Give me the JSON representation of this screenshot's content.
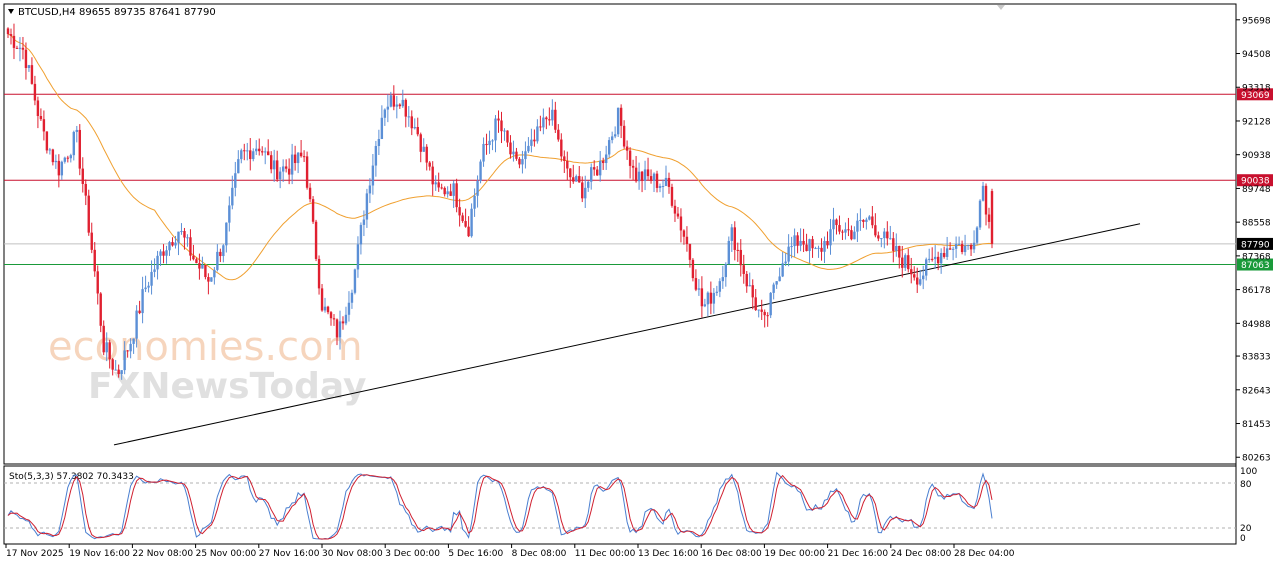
{
  "header": {
    "symbol_line": "BTCUSD,H4  89655 89735 87641 87790"
  },
  "indicator": {
    "label": "Sto(5,3,3) 57.3802 70.3433",
    "levels_text": [
      "100",
      "80",
      "20",
      "0"
    ]
  },
  "watermark": {
    "line1": "economies.com",
    "line2": "FXNewsToday"
  },
  "chart_data": {
    "type": "candlestick",
    "symbol": "BTCUSD",
    "timeframe": "H4",
    "ohlc_header": {
      "open": 89655,
      "high": 89735,
      "low": 87641,
      "close": 87790
    },
    "price_axis_ticks": [
      95698,
      94508,
      93318,
      92128,
      90938,
      89748,
      88558,
      87368,
      86178,
      84988,
      83833,
      82643,
      81453,
      80263
    ],
    "price_axis_range": [
      80060,
      96220
    ],
    "time_axis_labels": [
      "17 Nov 2025",
      "19 Nov 16:00",
      "22 Nov 08:00",
      "25 Nov 00:00",
      "27 Nov 16:00",
      "30 Nov 08:00",
      "3 Dec 00:00",
      "5 Dec 16:00",
      "8 Dec 08:00",
      "11 Dec 00:00",
      "13 Dec 16:00",
      "16 Dec 08:00",
      "19 Dec 00:00",
      "21 Dec 16:00",
      "24 Dec 08:00",
      "28 Dec 04:00"
    ],
    "horizontal_levels": [
      {
        "value": 93069,
        "label": "93069",
        "color": "#c8102e"
      },
      {
        "value": 90038,
        "label": "90038",
        "color": "#c8102e"
      },
      {
        "value": 87790,
        "label": "87790",
        "color": "#000000",
        "kind": "current_price"
      },
      {
        "value": 87063,
        "label": "87063",
        "color": "#1a9a3a"
      }
    ],
    "trendline": {
      "from": {
        "time": "19 Nov 2025",
        "price": 80700
      },
      "to": {
        "time": "31 Dec 2025",
        "price": 88500
      },
      "color": "#000000"
    },
    "moving_average_color": "#f0a030",
    "bull_color": "#5b8fd6",
    "bear_color": "#e02030",
    "close_path": [
      [
        0.0,
        95200
      ],
      [
        0.7,
        94600
      ],
      [
        1.5,
        91800
      ],
      [
        2.2,
        90400
      ],
      [
        3.0,
        91600
      ],
      [
        3.7,
        87500
      ],
      [
        4.2,
        84200
      ],
      [
        4.8,
        83200
      ],
      [
        5.4,
        84400
      ],
      [
        6.0,
        86200
      ],
      [
        6.8,
        87600
      ],
      [
        7.5,
        88300
      ],
      [
        8.2,
        87200
      ],
      [
        8.8,
        86500
      ],
      [
        9.5,
        88000
      ],
      [
        10.2,
        90900
      ],
      [
        11.0,
        91300
      ],
      [
        11.7,
        90400
      ],
      [
        12.3,
        90500
      ],
      [
        13.0,
        90900
      ],
      [
        13.8,
        85600
      ],
      [
        14.5,
        84600
      ],
      [
        15.2,
        86700
      ],
      [
        15.8,
        89800
      ],
      [
        16.5,
        92700
      ],
      [
        17.2,
        93000
      ],
      [
        18.0,
        91700
      ],
      [
        18.8,
        89600
      ],
      [
        19.5,
        89800
      ],
      [
        20.2,
        88300
      ],
      [
        20.8,
        90900
      ],
      [
        21.5,
        92100
      ],
      [
        22.3,
        90500
      ],
      [
        23.0,
        91200
      ],
      [
        23.8,
        92500
      ],
      [
        24.5,
        90300
      ],
      [
        25.2,
        89700
      ],
      [
        26.0,
        90600
      ],
      [
        26.8,
        92300
      ],
      [
        27.5,
        90200
      ],
      [
        28.2,
        90100
      ],
      [
        29.0,
        89800
      ],
      [
        29.8,
        87800
      ],
      [
        30.5,
        85500
      ],
      [
        31.2,
        86400
      ],
      [
        31.8,
        88200
      ],
      [
        32.5,
        86300
      ],
      [
        33.2,
        84900
      ],
      [
        34.0,
        87300
      ],
      [
        34.8,
        88000
      ],
      [
        35.5,
        87400
      ],
      [
        36.3,
        88400
      ],
      [
        37.0,
        88200
      ],
      [
        37.8,
        88700
      ],
      [
        38.5,
        87900
      ],
      [
        39.3,
        87200
      ],
      [
        40.0,
        86600
      ],
      [
        40.8,
        87400
      ],
      [
        41.5,
        87800
      ],
      [
        42.3,
        87600
      ],
      [
        42.8,
        89900
      ],
      [
        43.2,
        87790
      ]
    ]
  }
}
